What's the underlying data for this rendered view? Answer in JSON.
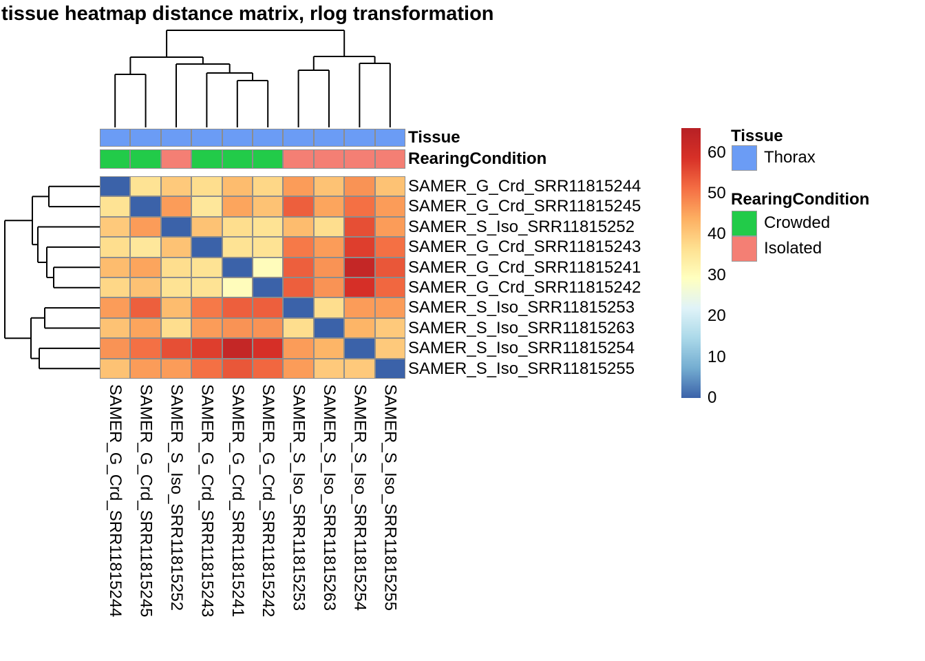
{
  "title": "tissue heatmap distance matrix, rlog transformation",
  "chart_data": {
    "type": "heatmap",
    "title": "tissue heatmap distance matrix, rlog transformation",
    "rows": [
      "SAMER_G_Crd_SRR11815244",
      "SAMER_G_Crd_SRR11815245",
      "SAMER_S_Iso_SRR11815252",
      "SAMER_G_Crd_SRR11815243",
      "SAMER_G_Crd_SRR11815241",
      "SAMER_G_Crd_SRR11815242",
      "SAMER_S_Iso_SRR11815253",
      "SAMER_S_Iso_SRR11815263",
      "SAMER_S_Iso_SRR11815254",
      "SAMER_S_Iso_SRR11815255"
    ],
    "columns": [
      "SAMER_G_Crd_SRR11815244",
      "SAMER_G_Crd_SRR11815245",
      "SAMER_S_Iso_SRR11815252",
      "SAMER_G_Crd_SRR11815243",
      "SAMER_G_Crd_SRR11815241",
      "SAMER_G_Crd_SRR11815242",
      "SAMER_S_Iso_SRR11815253",
      "SAMER_S_Iso_SRR11815263",
      "SAMER_S_Iso_SRR11815254",
      "SAMER_S_Iso_SRR11815255"
    ],
    "matrix": [
      [
        0,
        36,
        40,
        37,
        42,
        38,
        46,
        41,
        47,
        41
      ],
      [
        36,
        0,
        46,
        35,
        45,
        41,
        53,
        45,
        51,
        46
      ],
      [
        40,
        46,
        0,
        41,
        37,
        36,
        42,
        37,
        55,
        46
      ],
      [
        37,
        35,
        41,
        0,
        36,
        36,
        50,
        46,
        57,
        51
      ],
      [
        42,
        45,
        37,
        36,
        0,
        30,
        53,
        47,
        63,
        54
      ],
      [
        38,
        41,
        36,
        36,
        30,
        0,
        53,
        47,
        59,
        52
      ],
      [
        46,
        53,
        42,
        50,
        53,
        53,
        0,
        37,
        46,
        46
      ],
      [
        41,
        45,
        37,
        46,
        47,
        47,
        37,
        0,
        43,
        40
      ],
      [
        47,
        51,
        55,
        57,
        63,
        59,
        46,
        43,
        0,
        40
      ],
      [
        41,
        46,
        46,
        51,
        54,
        52,
        46,
        40,
        40,
        0
      ]
    ],
    "value_range": [
      0,
      66
    ],
    "colorbar_ticks": [
      0,
      10,
      20,
      30,
      40,
      50,
      60
    ],
    "palette_stops": [
      "#3B62A9",
      "#74ADD1",
      "#ABD9E9",
      "#E0F3F8",
      "#FFFFBF",
      "#FEE090",
      "#FDAE61",
      "#F46D43",
      "#D73027",
      "#B72025"
    ],
    "grid_line_color": "#8C8C8C",
    "column_annotations": {
      "Tissue": [
        "Thorax",
        "Thorax",
        "Thorax",
        "Thorax",
        "Thorax",
        "Thorax",
        "Thorax",
        "Thorax",
        "Thorax",
        "Thorax"
      ],
      "RearingCondition": [
        "Crowded",
        "Crowded",
        "Isolated",
        "Crowded",
        "Crowded",
        "Crowded",
        "Isolated",
        "Isolated",
        "Isolated",
        "Isolated"
      ]
    },
    "annotation_colors": {
      "Thorax": "#6B9CF5",
      "Crowded": "#22CB49",
      "Isolated": "#F47F74"
    },
    "col_dendrogram_segments": [
      [
        344.8,
        185,
        344.8,
        117
      ],
      [
        389.2,
        185,
        389.2,
        117
      ],
      [
        344.8,
        117,
        389.2,
        117
      ],
      [
        300.4,
        185,
        300.4,
        106
      ],
      [
        367,
        117,
        367,
        106
      ],
      [
        300.4,
        106,
        367,
        106
      ],
      [
        256,
        185,
        256,
        93
      ],
      [
        333.7,
        106,
        333.7,
        93
      ],
      [
        256,
        93,
        333.7,
        93
      ],
      [
        167.2,
        185,
        167.2,
        108
      ],
      [
        211.6,
        185,
        211.6,
        108
      ],
      [
        167.2,
        108,
        211.6,
        108
      ],
      [
        189.4,
        108,
        189.4,
        83
      ],
      [
        294.9,
        93,
        294.9,
        83
      ],
      [
        189.4,
        83,
        294.9,
        83
      ],
      [
        433.6,
        185,
        433.6,
        102
      ],
      [
        478,
        185,
        478,
        102
      ],
      [
        433.6,
        102,
        478,
        102
      ],
      [
        522.4,
        185,
        522.4,
        92
      ],
      [
        566.8,
        185,
        566.8,
        92
      ],
      [
        522.4,
        92,
        566.8,
        92
      ],
      [
        455.8,
        102,
        455.8,
        82
      ],
      [
        544.6,
        92,
        544.6,
        82
      ],
      [
        455.8,
        82,
        544.6,
        82
      ],
      [
        242.1,
        83,
        242.1,
        44
      ],
      [
        500.2,
        82,
        500.2,
        44
      ],
      [
        242.1,
        44,
        500.2,
        44
      ]
    ],
    "row_dendrogram_segments": [
      [
        145,
        270.7,
        71,
        270.7
      ],
      [
        145,
        300.1,
        71,
        300.1
      ],
      [
        71,
        270.7,
        71,
        300.1
      ],
      [
        145,
        388.3,
        78,
        388.3
      ],
      [
        145,
        417.7,
        78,
        417.7
      ],
      [
        78,
        388.3,
        78,
        417.7
      ],
      [
        145,
        358.9,
        68,
        358.9
      ],
      [
        78,
        403,
        68,
        403
      ],
      [
        68,
        358.9,
        68,
        403
      ],
      [
        145,
        329.5,
        55,
        329.5
      ],
      [
        68,
        381,
        55,
        381
      ],
      [
        55,
        329.5,
        55,
        381
      ],
      [
        71,
        285.4,
        47,
        285.4
      ],
      [
        55,
        355.2,
        47,
        355.2
      ],
      [
        47,
        285.4,
        47,
        355.2
      ],
      [
        145,
        447.1,
        65,
        447.1
      ],
      [
        145,
        476.5,
        65,
        476.5
      ],
      [
        65,
        447.1,
        65,
        476.5
      ],
      [
        145,
        505.9,
        57,
        505.9
      ],
      [
        145,
        535.3,
        57,
        535.3
      ],
      [
        57,
        505.9,
        57,
        535.3
      ],
      [
        65,
        461.8,
        45,
        461.8
      ],
      [
        57,
        520.6,
        45,
        520.6
      ],
      [
        45,
        461.8,
        45,
        520.6
      ],
      [
        47,
        320.3,
        7,
        320.3
      ],
      [
        45,
        491.2,
        7,
        491.2
      ],
      [
        7,
        320.3,
        7,
        491.2
      ]
    ]
  },
  "annotation_tracks": {
    "tissue_label": "Tissue",
    "rearing_label": "RearingCondition"
  },
  "legend": {
    "tissue_header": "Tissue",
    "tissue_items": [
      {
        "label": "Thorax",
        "color": "#6B9CF5"
      }
    ],
    "rearing_header": "RearingCondition",
    "rearing_items": [
      {
        "label": "Crowded",
        "color": "#22CB49"
      },
      {
        "label": "Isolated",
        "color": "#F47F74"
      }
    ]
  }
}
